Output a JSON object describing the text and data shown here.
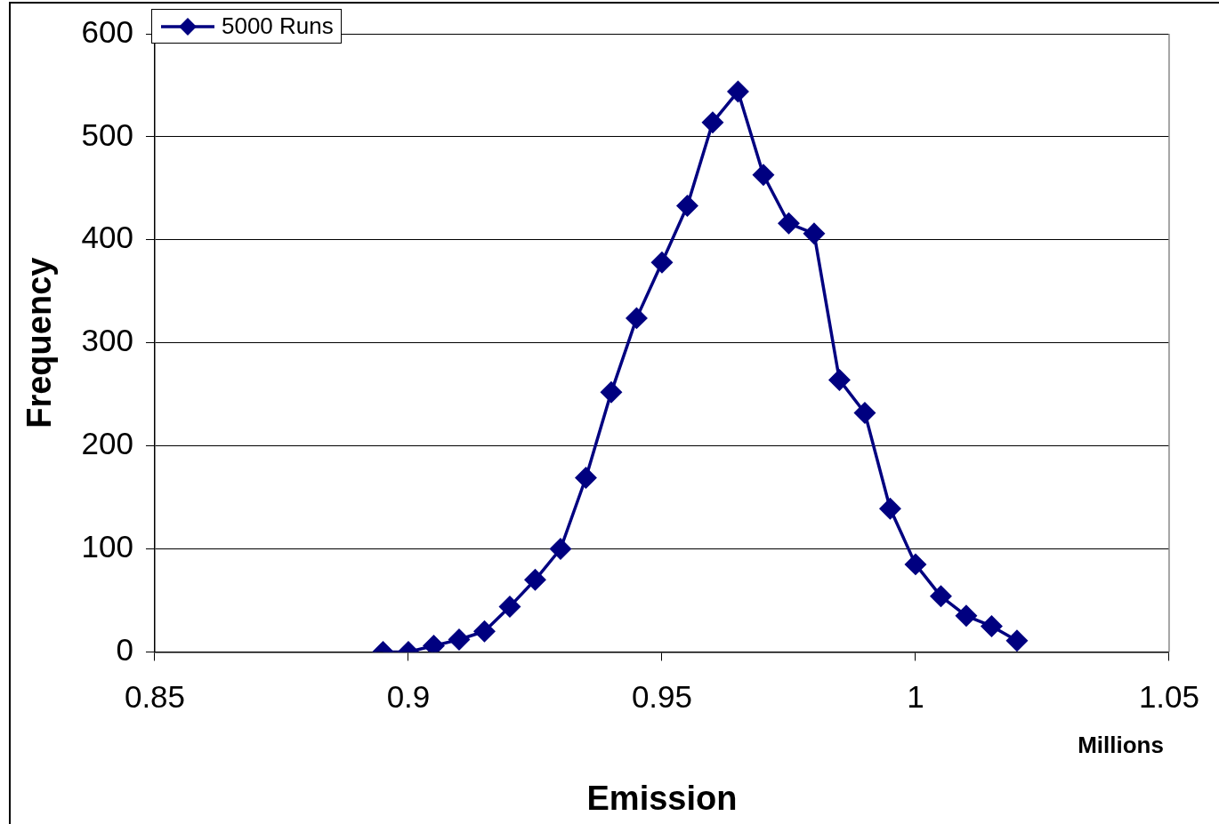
{
  "chart_data": {
    "type": "line",
    "xlabel": "Emission",
    "ylabel": "Frequency",
    "annotations": [
      "Millions"
    ],
    "x": [
      0.895,
      0.9,
      0.905,
      0.91,
      0.915,
      0.92,
      0.925,
      0.93,
      0.935,
      0.94,
      0.945,
      0.95,
      0.955,
      0.96,
      0.965,
      0.97,
      0.975,
      0.98,
      0.985,
      0.99,
      0.995,
      1.0,
      1.005,
      1.01,
      1.015,
      1.02
    ],
    "series": [
      {
        "name": "5000 Runs",
        "color": "#000080",
        "values": [
          0,
          0,
          6,
          12,
          20,
          44,
          70,
          100,
          169,
          252,
          324,
          378,
          433,
          514,
          544,
          463,
          416,
          406,
          264,
          232,
          139,
          85,
          54,
          35,
          25,
          11
        ]
      }
    ],
    "xlim": [
      0.85,
      1.05
    ],
    "xticks": [
      0.85,
      0.9,
      0.95,
      1,
      1.05
    ],
    "ylim": [
      0,
      600
    ],
    "yticks": [
      0,
      100,
      200,
      300,
      400,
      500,
      600
    ],
    "grid": "y",
    "legend": "top left",
    "marker": "diamond",
    "line_style": "solid"
  }
}
